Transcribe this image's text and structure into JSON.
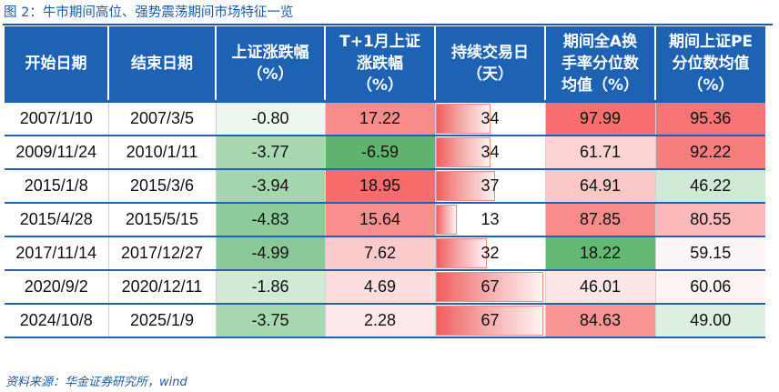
{
  "title": "图 2：牛市期间高位、强势震荡期间市场特征一览",
  "source": "资料来源：华金证券研究所，wind",
  "headers": [
    [
      "开始日期"
    ],
    [
      "结束日期"
    ],
    [
      "上证涨跌幅",
      "（%）"
    ],
    [
      "T+1月上证",
      "涨跌幅",
      "（%）"
    ],
    [
      "持续交易日",
      "（天）"
    ],
    [
      "期间全A换",
      "手率分位数",
      "均值（%）"
    ],
    [
      "期间上证PE",
      "分位数均值",
      "（%）"
    ]
  ],
  "rows": [
    {
      "start": "2007/1/10",
      "end": "2007/3/5",
      "chg": "-0.80",
      "t1": "17.22",
      "days": "34",
      "turn": "97.99",
      "pe": "95.36"
    },
    {
      "start": "2009/11/24",
      "end": "2010/1/11",
      "chg": "-3.77",
      "t1": "-6.59",
      "days": "34",
      "turn": "61.71",
      "pe": "92.22"
    },
    {
      "start": "2015/1/8",
      "end": "2015/3/6",
      "chg": "-3.94",
      "t1": "18.95",
      "days": "37",
      "turn": "64.91",
      "pe": "46.22"
    },
    {
      "start": "2015/4/28",
      "end": "2015/5/15",
      "chg": "-4.83",
      "t1": "15.64",
      "days": "13",
      "turn": "87.85",
      "pe": "80.55"
    },
    {
      "start": "2017/11/14",
      "end": "2017/12/27",
      "chg": "-4.99",
      "t1": "7.62",
      "days": "32",
      "turn": "18.22",
      "pe": "59.15"
    },
    {
      "start": "2020/9/2",
      "end": "2020/12/11",
      "chg": "-1.86",
      "t1": "4.69",
      "days": "67",
      "turn": "46.01",
      "pe": "60.06"
    },
    {
      "start": "2024/10/8",
      "end": "2025/1/9",
      "chg": "-3.75",
      "t1": "2.28",
      "days": "67",
      "turn": "84.63",
      "pe": "49.00"
    }
  ],
  "colors": {
    "header_bg": "#1d62b3",
    "title": "#1f5a9c",
    "chg": [
      "#eef7ef",
      "#a8d8b0",
      "#a3d6ac",
      "#8ecb9a",
      "#8ac997",
      "#d0ead5",
      "#a8d8b0"
    ],
    "t1": [
      "#f98b8b",
      "#5fb36f",
      "#f86c6c",
      "#f98f8f",
      "#fbcaca",
      "#fcdede",
      "#fde9e9"
    ],
    "turn": [
      "#f96e6e",
      "#fbd3d3",
      "#fbc8c8",
      "#f98b8b",
      "#63b874",
      "#fde6e6",
      "#f99494"
    ],
    "pe": [
      "#f87373",
      "#f87d7d",
      "#cfe9d4",
      "#fbb9b9",
      "#fdf6f6",
      "#fdf3f3",
      "#ddefe1"
    ]
  }
}
